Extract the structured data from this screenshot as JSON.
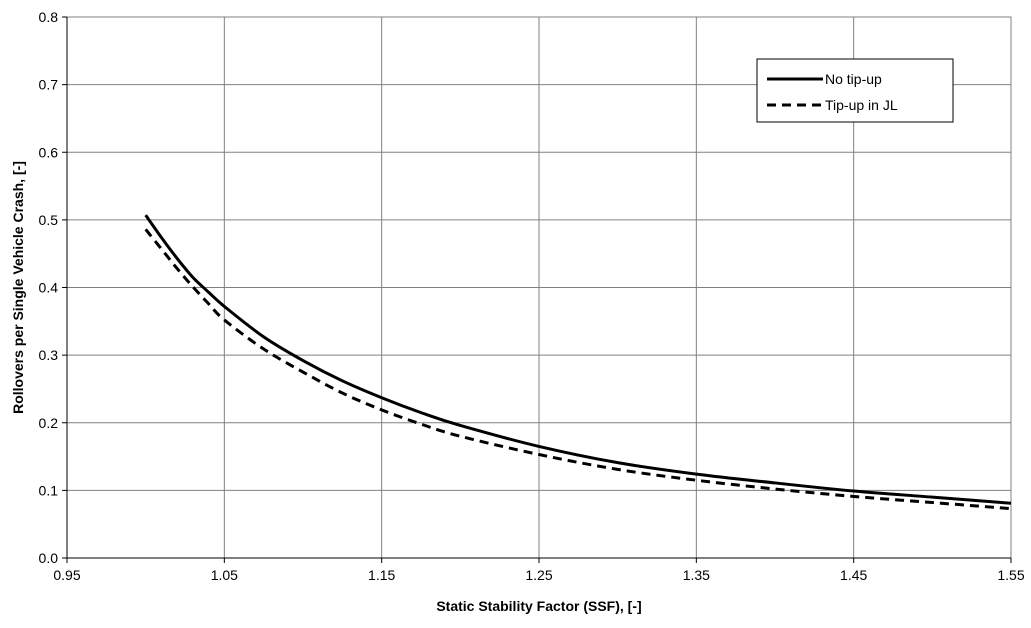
{
  "chart_data": {
    "type": "line",
    "title": "",
    "xlabel": "Static Stability Factor (SSF), [-]",
    "ylabel": "Rollovers per Single Vehicle Crash, [-]",
    "xlim": [
      0.95,
      1.55
    ],
    "ylim": [
      0.0,
      0.8
    ],
    "x_ticks": [
      0.95,
      1.05,
      1.15,
      1.25,
      1.35,
      1.45,
      1.55
    ],
    "x_tick_labels": [
      "0.95",
      "1.05",
      "1.15",
      "1.25",
      "1.35",
      "1.45",
      "1.55"
    ],
    "y_ticks": [
      0.0,
      0.1,
      0.2,
      0.3,
      0.4,
      0.5,
      0.6,
      0.7,
      0.8
    ],
    "y_tick_labels": [
      "0.0",
      "0.1",
      "0.2",
      "0.3",
      "0.4",
      "0.5",
      "0.6",
      "0.7",
      "0.8"
    ],
    "grid": true,
    "legend_position": "top-right",
    "series": [
      {
        "name": "No tip-up",
        "style": "solid",
        "color": "#000000",
        "x": [
          1.0,
          1.01,
          1.02,
          1.03,
          1.04,
          1.05,
          1.075,
          1.1,
          1.125,
          1.15,
          1.175,
          1.2,
          1.25,
          1.3,
          1.35,
          1.4,
          1.45,
          1.5,
          1.55
        ],
        "y": [
          0.507,
          0.474,
          0.443,
          0.415,
          0.393,
          0.372,
          0.327,
          0.292,
          0.262,
          0.237,
          0.215,
          0.196,
          0.165,
          0.141,
          0.124,
          0.111,
          0.099,
          0.09,
          0.081
        ]
      },
      {
        "name": "Tip-up in JL",
        "style": "dashed",
        "color": "#000000",
        "x": [
          1.0,
          1.01,
          1.02,
          1.03,
          1.04,
          1.05,
          1.075,
          1.1,
          1.125,
          1.15,
          1.175,
          1.2,
          1.25,
          1.3,
          1.35,
          1.4,
          1.45,
          1.5,
          1.55
        ],
        "y": [
          0.486,
          0.457,
          0.428,
          0.401,
          0.376,
          0.352,
          0.309,
          0.275,
          0.244,
          0.219,
          0.198,
          0.18,
          0.153,
          0.131,
          0.115,
          0.102,
          0.091,
          0.082,
          0.073
        ]
      }
    ]
  }
}
